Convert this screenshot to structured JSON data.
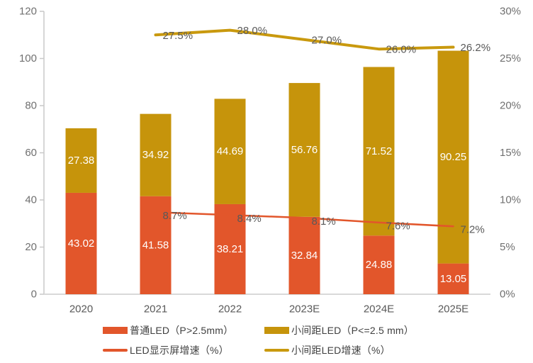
{
  "chart_data": {
    "type": "combo-stacked-bar-line",
    "title": "",
    "categories": [
      "2020",
      "2021",
      "2022",
      "2023E",
      "2024E",
      "2025E"
    ],
    "left_axis": {
      "min": 0,
      "max": 120,
      "ticks": [
        "0",
        "20",
        "40",
        "60",
        "80",
        "100",
        "120"
      ]
    },
    "right_axis": {
      "min": 0,
      "max": 30,
      "unit": "%",
      "ticks": [
        "0%",
        "5%",
        "10%",
        "15%",
        "20%",
        "25%",
        "30%"
      ]
    },
    "grid": "off",
    "legend_position": "bottom",
    "bar_series": [
      {
        "name": "普通LED（P>2.5mm）",
        "color": "#E2562B",
        "values": [
          43.02,
          41.58,
          38.21,
          32.84,
          24.88,
          13.05
        ],
        "data_labels": [
          "43.02",
          "41.58",
          "38.21",
          "32.84",
          "24.88",
          "13.05"
        ],
        "label_color": "#FFFFFF"
      },
      {
        "name": "小间距LED（P<=2.5 mm）",
        "color": "#C6940B",
        "values": [
          27.38,
          34.92,
          44.69,
          56.76,
          71.52,
          90.25
        ],
        "data_labels": [
          "27.38",
          "34.92",
          "44.69",
          "56.76",
          "71.52",
          "90.25"
        ],
        "label_color": "#FFFFFF"
      }
    ],
    "line_series": [
      {
        "name": "LED显示屏增速（%）",
        "color": "#E2562B",
        "axis": "right",
        "stroke_width": 2.5,
        "label_dy": 5,
        "values": [
          null,
          8.7,
          8.4,
          8.1,
          7.6,
          7.2
        ],
        "data_labels": [
          null,
          "8.7%",
          "8.4%",
          "8.1%",
          "7.6%",
          "7.2%"
        ]
      },
      {
        "name": "小间距LED增速（%）",
        "color": "#C9990E",
        "axis": "right",
        "stroke_width": 4,
        "label_dy": 1,
        "values": [
          null,
          27.5,
          28.0,
          27.0,
          26.0,
          26.2
        ],
        "data_labels": [
          null,
          "27.5%",
          "28.0%",
          "27.0%",
          "26.0%",
          "26.2%"
        ]
      }
    ],
    "line_label_color": "#595959",
    "axis_label_color": "#707070",
    "category_label_color": "#595959",
    "axis_line_color": "#C9C9C9",
    "baseline_color": "#D9D9D9",
    "legend": [
      {
        "label": "普通LED（P>2.5mm）",
        "swatch": "rect",
        "color": "#E2562B"
      },
      {
        "label": "小间距LED（P<=2.5 mm）",
        "swatch": "rect",
        "color": "#C6940B"
      },
      {
        "label": "LED显示屏增速（%）",
        "swatch": "line",
        "color": "#E2562B"
      },
      {
        "label": "小间距LED增速（%）",
        "swatch": "line",
        "color": "#C9990E"
      }
    ]
  }
}
